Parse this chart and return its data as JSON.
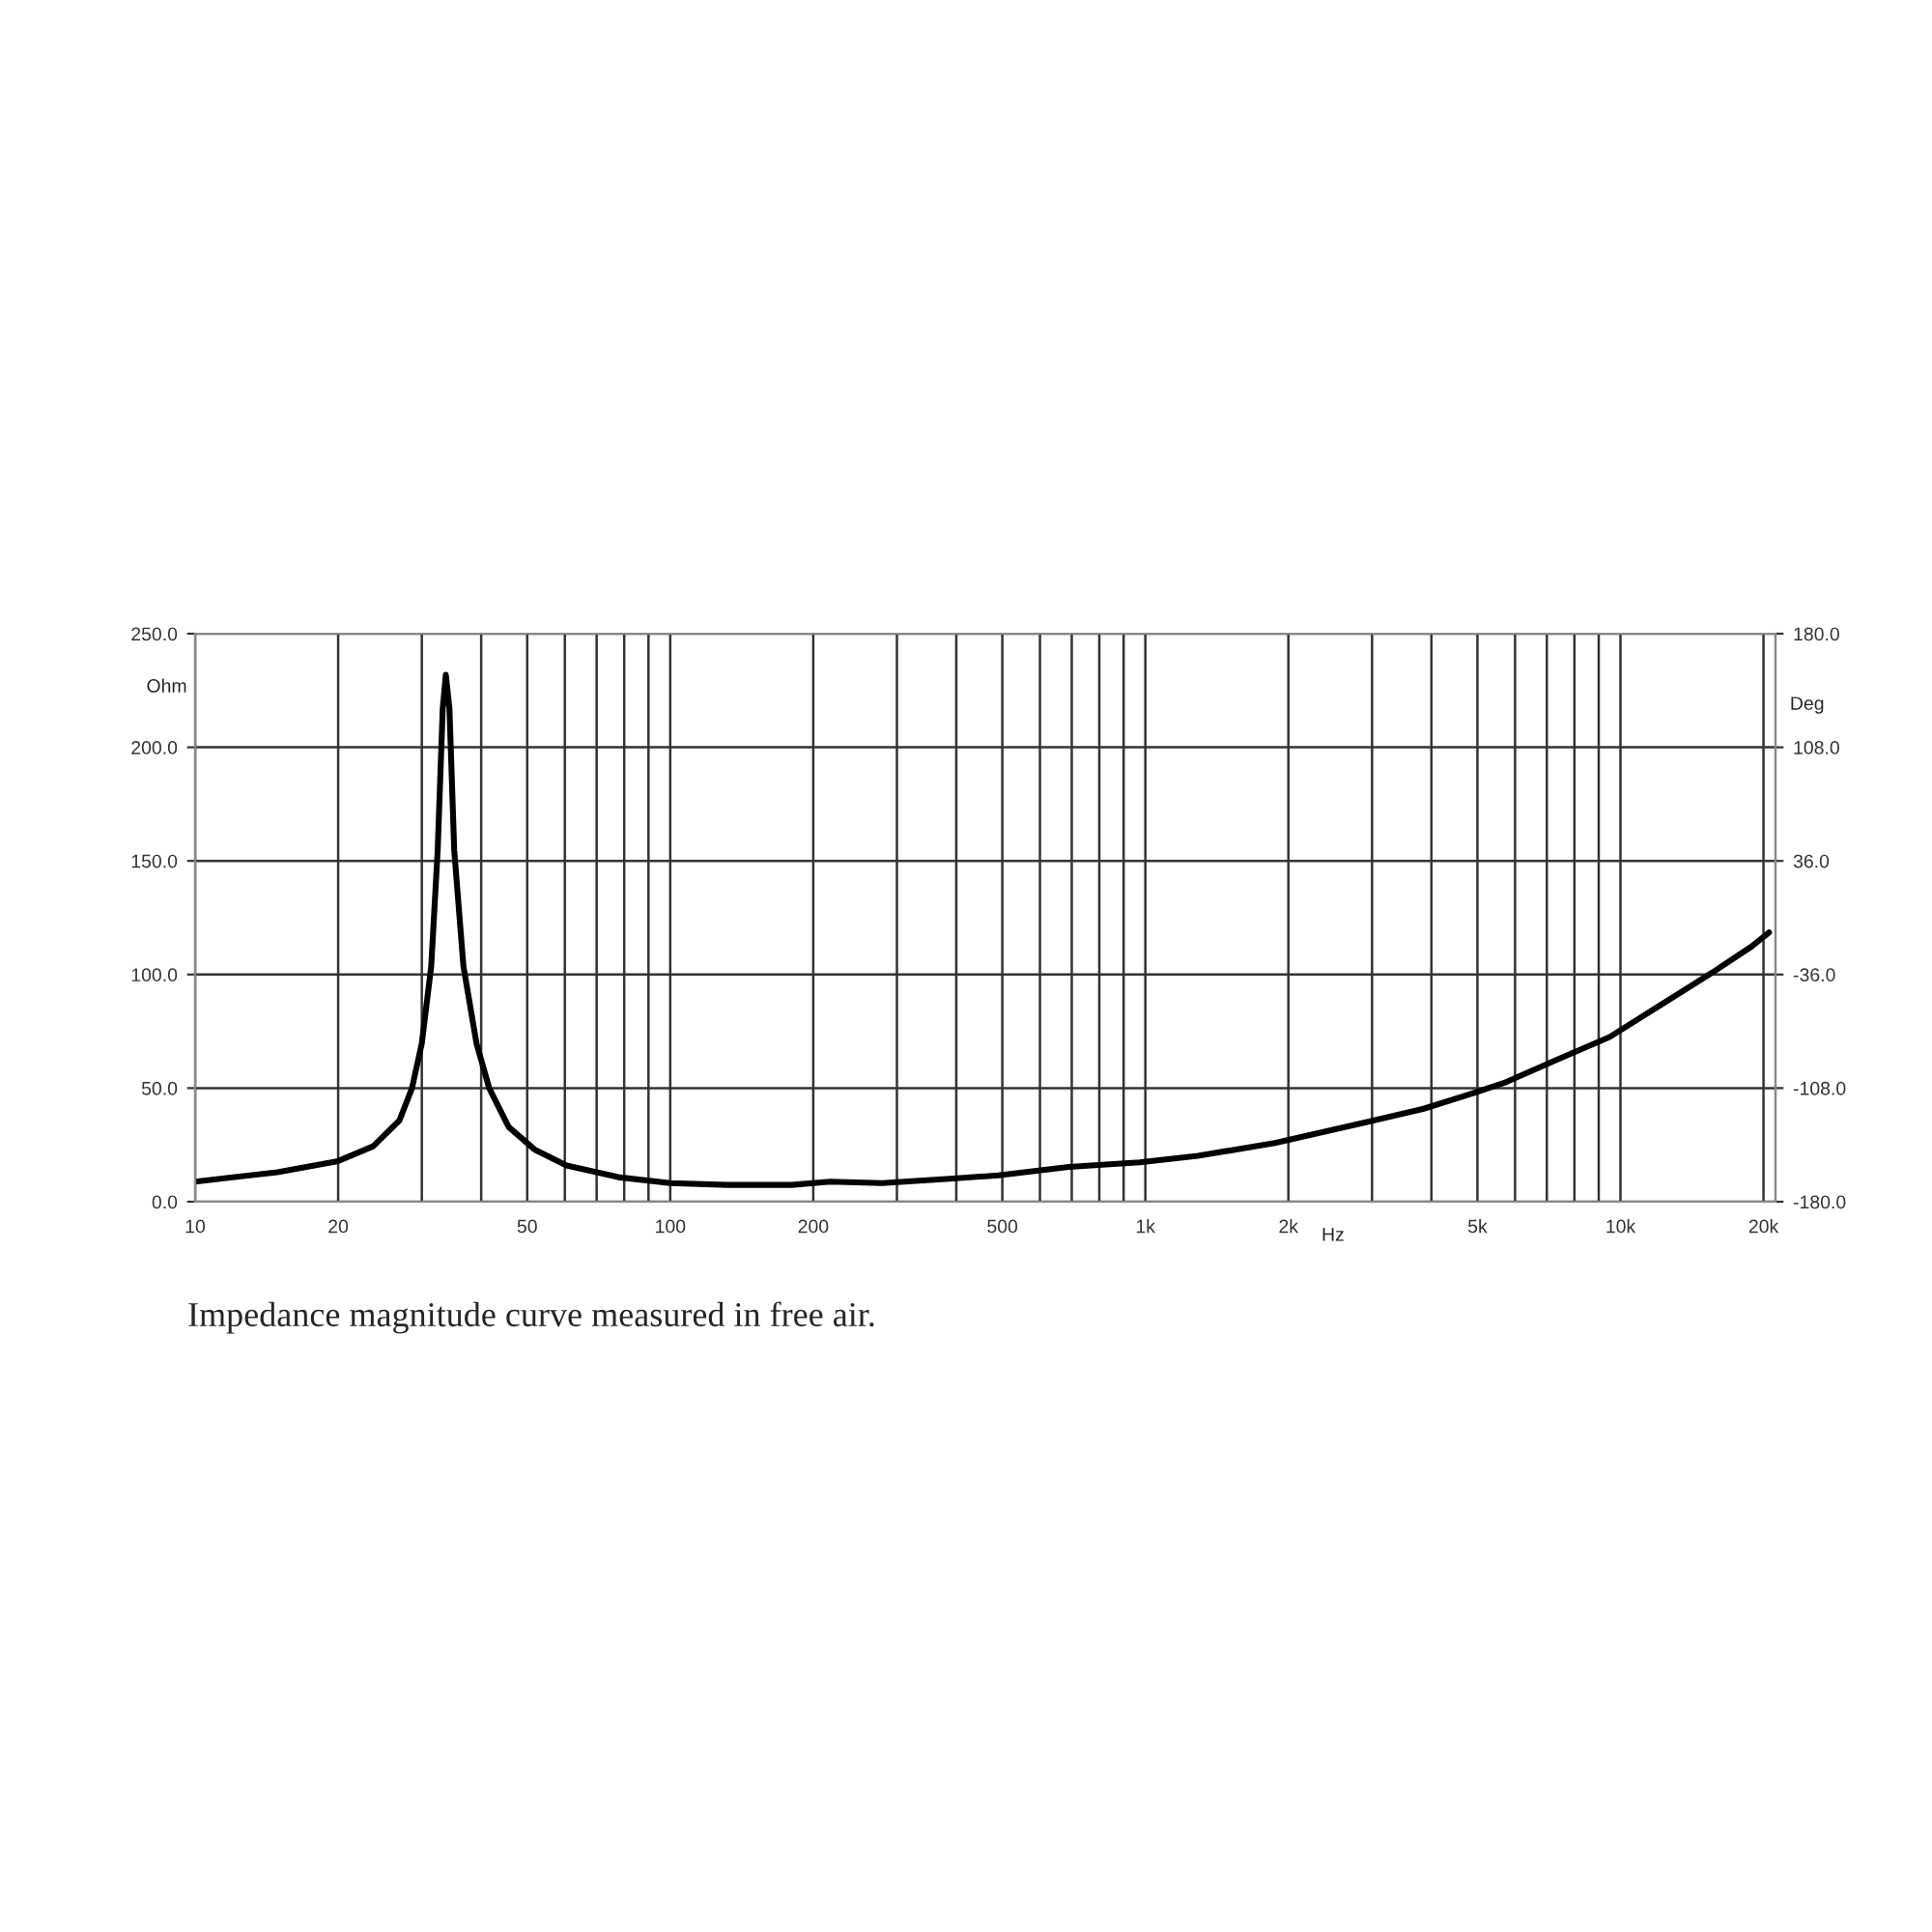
{
  "chart_data": {
    "type": "line",
    "xlabel": "Hz",
    "ylabel": "Ohm",
    "y2label": "Deg",
    "log": "x",
    "x": [
      10,
      14.9,
      20,
      23.7,
      26.9,
      28.6,
      30.0,
      31.4,
      32.4,
      33.2,
      33.7,
      34.3,
      35.1,
      36.7,
      39.1,
      41.6,
      45.7,
      51.8,
      60.5,
      77.7,
      100,
      132,
      180,
      217,
      279,
      394,
      490,
      690,
      973,
      1290,
      1872,
      2898,
      3837,
      4775,
      5754,
      7390,
      9490,
      12170,
      15620,
      18840,
      20540
    ],
    "series": [
      {
        "color": "#000000",
        "values": [
          8.8,
          13,
          17.9,
          24.4,
          35.7,
          49.9,
          69.7,
          103.7,
          154.8,
          217,
          231.9,
          217,
          154.8,
          103.7,
          69.7,
          49.9,
          32.9,
          23.0,
          15.9,
          10.8,
          8.2,
          7.4,
          7.4,
          8.8,
          8.2,
          10.2,
          11.6,
          15.3,
          17.3,
          20.2,
          25.8,
          34.9,
          40.8,
          47.0,
          52.7,
          62.7,
          72.5,
          86.7,
          100.9,
          112.2,
          118.5
        ]
      }
    ],
    "xlim": [
      10,
      21200
    ],
    "ylim": [
      0,
      250
    ],
    "y2lim": [
      -180,
      180
    ],
    "xticks": [
      10,
      20,
      {
        "value": 30,
        "label": null
      },
      {
        "value": 40,
        "label": null
      },
      50,
      {
        "value": 60,
        "label": null
      },
      {
        "value": 70,
        "label": null
      },
      {
        "value": 80,
        "label": null
      },
      {
        "value": 90,
        "label": null
      },
      100,
      200,
      {
        "value": 300,
        "label": null
      },
      {
        "value": 400,
        "label": null
      },
      500,
      {
        "value": 600,
        "label": null
      },
      {
        "value": 700,
        "label": null
      },
      {
        "value": 800,
        "label": null
      },
      {
        "value": 900,
        "label": null
      },
      {
        "value": 1000,
        "label": "1k"
      },
      {
        "value": 2000,
        "label": "2k"
      },
      {
        "value": 3000,
        "label": null
      },
      {
        "value": 4000,
        "label": null
      },
      {
        "value": 5000,
        "label": "5k"
      },
      {
        "value": 6000,
        "label": null
      },
      {
        "value": 7000,
        "label": null
      },
      {
        "value": 8000,
        "label": null
      },
      {
        "value": 9000,
        "label": null
      },
      {
        "value": 10000,
        "label": "10k"
      },
      {
        "value": 20000,
        "label": "20k"
      }
    ],
    "yticks": [
      {
        "value": 0,
        "label": "0.0"
      },
      {
        "value": 50,
        "label": "50.0"
      },
      {
        "value": 100,
        "label": "100.0"
      },
      {
        "value": 150,
        "label": "150.0"
      },
      {
        "value": 200,
        "label": "200.0"
      },
      {
        "value": 250,
        "label": "250.0"
      }
    ],
    "y2ticks": [
      {
        "value": -180,
        "label": "-180.0"
      },
      {
        "value": -108,
        "label": "-108.0"
      },
      {
        "value": -36,
        "label": "-36.0"
      },
      {
        "value": 36,
        "label": "36.0"
      },
      {
        "value": 108,
        "label": "108.0"
      },
      {
        "value": 180,
        "label": "180.0"
      }
    ],
    "grid": true,
    "line_style": "solid",
    "marker": "none",
    "annotations": [
      "Impedance magnitude curve measured in free air."
    ]
  }
}
